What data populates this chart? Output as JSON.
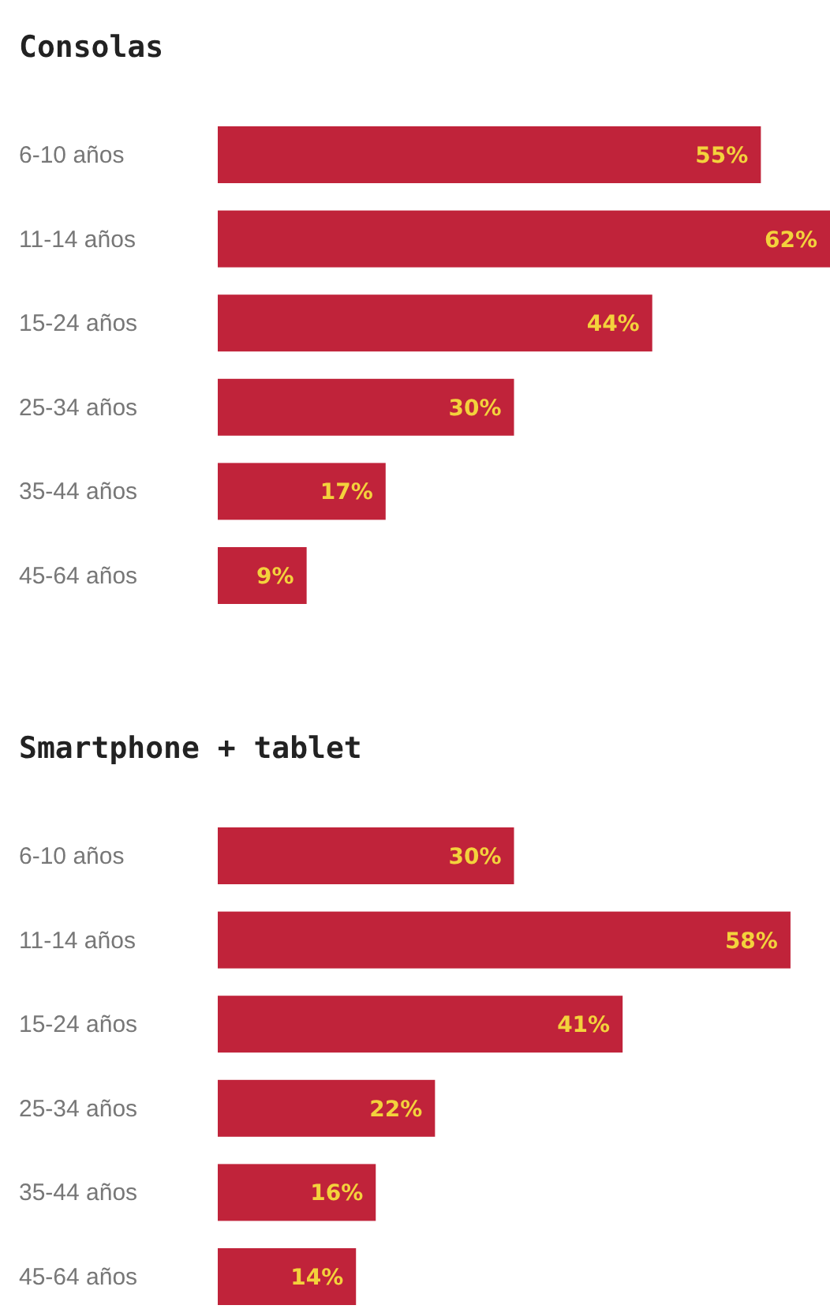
{
  "chart_data": [
    {
      "type": "bar",
      "title": "Consolas",
      "orientation": "horizontal",
      "categories": [
        "6-10 años",
        "11-14 años",
        "15-24 años",
        "25-34 años",
        "35-44 años",
        "45-64 años"
      ],
      "values": [
        55,
        62,
        44,
        30,
        17,
        9
      ],
      "value_labels": [
        "55%",
        "62%",
        "44%",
        "30%",
        "17%",
        "9%"
      ],
      "color": "#c0233a",
      "tick_labels": "y"
    },
    {
      "type": "bar",
      "title": "Smartphone + tablet",
      "orientation": "horizontal",
      "categories": [
        "6-10 años",
        "11-14 años",
        "15-24 años",
        "25-34 años",
        "35-44 años",
        "45-64 años"
      ],
      "values": [
        30,
        58,
        41,
        22,
        16,
        14
      ],
      "value_labels": [
        "30%",
        "58%",
        "41%",
        "22%",
        "16%",
        "14%"
      ],
      "color": "#c0233a",
      "tick_labels": "y"
    }
  ]
}
